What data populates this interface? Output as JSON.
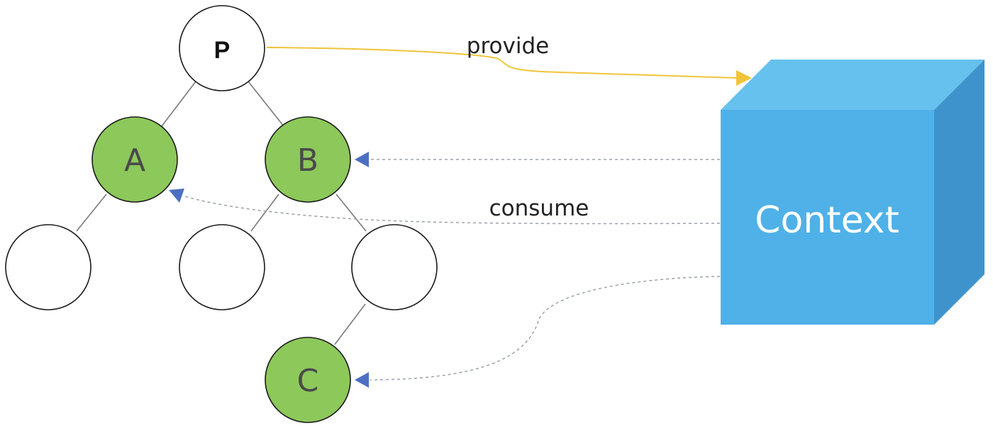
{
  "nodes": {
    "p": {
      "label": "P"
    },
    "a": {
      "label": "A"
    },
    "b": {
      "label": "B"
    },
    "c": {
      "label": "C"
    }
  },
  "context": {
    "label": "Context"
  },
  "edges": {
    "provide_label": "provide",
    "consume_label": "consume"
  },
  "colors": {
    "node_fill_plain": "#ffffff",
    "node_fill_consumer": "#8dc85b",
    "node_stroke": "#1a1a1a",
    "tree_line": "#7a7a7a",
    "provide_arrow": "#f0c43a",
    "consume_line": "#9aa0aa",
    "consume_arrowhead": "#4d6fc2",
    "cube_front": "#4fb1e8",
    "cube_top": "#66c1ee",
    "cube_side": "#3f93cc",
    "label_text_dark": "#222222",
    "label_text_node": "#4a4a4a",
    "context_text": "#ffffff"
  }
}
